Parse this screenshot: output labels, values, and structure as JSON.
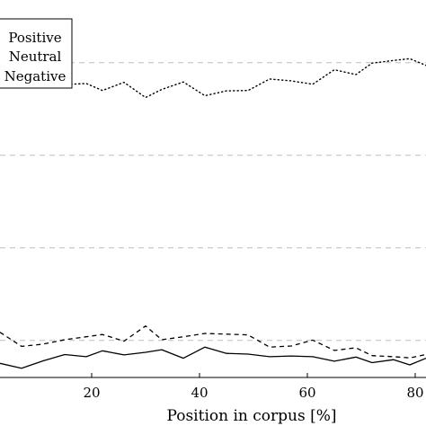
{
  "chart_data": {
    "type": "line",
    "xlabel": "Position in corpus [%]",
    "ylabel": "",
    "title": "",
    "xlim": [
      3,
      82
    ],
    "ylim": [
      0,
      100
    ],
    "xticks": [
      20,
      40,
      60,
      80
    ],
    "xtick_labels": [
      "20",
      "40",
      "60",
      "80"
    ],
    "grid": "horizontal-dashed",
    "gridlines_y": [
      10,
      35,
      60,
      85
    ],
    "legend_position": "top-left",
    "legend": [
      "Positive",
      "Neutral",
      "Negative"
    ],
    "series": [
      {
        "name": "Positive",
        "style": "solid",
        "points": [
          [
            3,
            3.8
          ],
          [
            7,
            2.5
          ],
          [
            11,
            4.5
          ],
          [
            15,
            6.2
          ],
          [
            19,
            5.6
          ],
          [
            22,
            7.2
          ],
          [
            26,
            6.1
          ],
          [
            30,
            6.8
          ],
          [
            33,
            7.5
          ],
          [
            37,
            5.2
          ],
          [
            41,
            8.2
          ],
          [
            45,
            6.5
          ],
          [
            49,
            6.3
          ],
          [
            53,
            5.6
          ],
          [
            57,
            5.8
          ],
          [
            61,
            5.6
          ],
          [
            65,
            4.4
          ],
          [
            69,
            5.5
          ],
          [
            72,
            4.0
          ],
          [
            76,
            4.8
          ],
          [
            79,
            3.4
          ],
          [
            82,
            5.2
          ]
        ]
      },
      {
        "name": "Neutral",
        "style": "dashed",
        "points": [
          [
            3,
            12.2
          ],
          [
            7,
            8.4
          ],
          [
            11,
            9.0
          ],
          [
            15,
            10.2
          ],
          [
            19,
            11.0
          ],
          [
            22,
            11.6
          ],
          [
            26,
            9.8
          ],
          [
            30,
            13.9
          ],
          [
            33,
            10.2
          ],
          [
            37,
            11.0
          ],
          [
            41,
            11.9
          ],
          [
            45,
            11.7
          ],
          [
            49,
            11.5
          ],
          [
            53,
            8.2
          ],
          [
            57,
            8.5
          ],
          [
            61,
            10.1
          ],
          [
            65,
            7.3
          ],
          [
            69,
            8.0
          ],
          [
            72,
            5.9
          ],
          [
            76,
            5.6
          ],
          [
            79,
            5.3
          ],
          [
            82,
            6.2
          ]
        ]
      },
      {
        "name": "Negative",
        "style": "dotted",
        "points": [
          [
            3,
            80.6
          ],
          [
            7,
            80.0
          ],
          [
            11,
            79.4
          ],
          [
            15,
            79.1
          ],
          [
            19,
            79.4
          ],
          [
            22,
            77.5
          ],
          [
            26,
            79.7
          ],
          [
            30,
            75.6
          ],
          [
            33,
            77.8
          ],
          [
            37,
            79.8
          ],
          [
            41,
            76.1
          ],
          [
            45,
            77.4
          ],
          [
            49,
            77.5
          ],
          [
            53,
            80.6
          ],
          [
            57,
            80.1
          ],
          [
            61,
            79.2
          ],
          [
            65,
            83.1
          ],
          [
            69,
            81.8
          ],
          [
            72,
            84.9
          ],
          [
            76,
            85.6
          ],
          [
            79,
            86.1
          ],
          [
            82,
            84.3
          ]
        ]
      }
    ]
  }
}
